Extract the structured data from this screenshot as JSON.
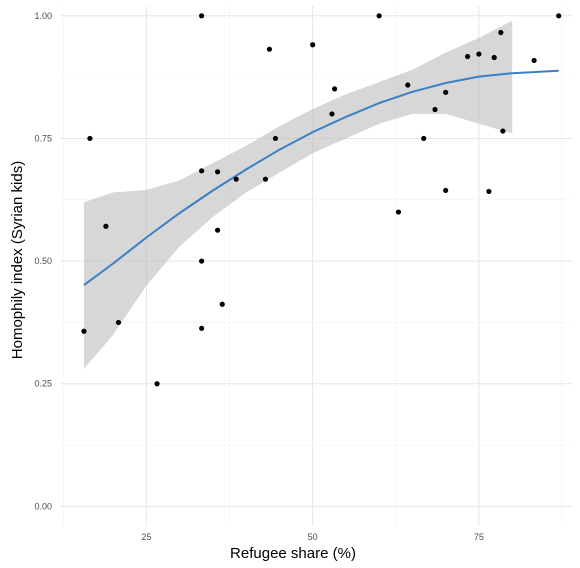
{
  "chart_data": {
    "type": "scatter",
    "title": "",
    "xlabel": "Refugee share (%)",
    "ylabel": "Homophily index (Syrian kids)",
    "xlim": [
      12,
      89
    ],
    "ylim": [
      -0.04,
      1.02
    ],
    "x_ticks": [
      25,
      50,
      75
    ],
    "x_tick_labels": [
      "25",
      "50",
      "75"
    ],
    "y_ticks": [
      0,
      0.25,
      0.5,
      0.75,
      1
    ],
    "y_tick_labels": [
      "0.00",
      "0.25",
      "0.50",
      "0.75",
      "1.00"
    ],
    "grid": true,
    "legend": "none",
    "points": {
      "x": [
        15.6,
        16.5,
        18.9,
        20.8,
        26.6,
        33.3,
        33.3,
        33.3,
        33.3,
        35.7,
        35.7,
        36.4,
        38.5,
        42.9,
        43.5,
        44.4,
        50.0,
        52.9,
        53.3,
        60.0,
        62.9,
        64.3,
        66.7,
        68.4,
        70.0,
        70.0,
        73.3,
        75.0,
        76.5,
        77.3,
        78.3,
        78.6,
        83.3,
        87.0
      ],
      "y": [
        0.357,
        0.75,
        0.571,
        0.375,
        0.25,
        1.0,
        0.684,
        0.5,
        0.363,
        0.682,
        0.563,
        0.412,
        0.667,
        0.667,
        0.932,
        0.75,
        0.941,
        0.8,
        0.851,
        1.0,
        0.6,
        0.859,
        0.75,
        0.809,
        0.844,
        0.644,
        0.917,
        0.922,
        0.642,
        0.915,
        0.966,
        0.765,
        0.909,
        1.0
      ],
      "color": "#000000"
    },
    "smooth": {
      "x": [
        15.6,
        20,
        25,
        30,
        35,
        40,
        45,
        50,
        55,
        60,
        65,
        70,
        75,
        80,
        87
      ],
      "y": [
        0.451,
        0.495,
        0.548,
        0.598,
        0.644,
        0.687,
        0.727,
        0.763,
        0.794,
        0.822,
        0.845,
        0.863,
        0.876,
        0.883,
        0.888
      ],
      "ci_x": [
        15.6,
        20,
        25,
        30,
        35,
        40,
        45,
        50,
        55,
        60,
        65,
        70,
        75,
        80
      ],
      "ci_lower": [
        0.28,
        0.35,
        0.45,
        0.53,
        0.59,
        0.64,
        0.68,
        0.72,
        0.75,
        0.78,
        0.8,
        0.8,
        0.78,
        0.76
      ],
      "ci_upper": [
        0.62,
        0.64,
        0.645,
        0.665,
        0.7,
        0.735,
        0.775,
        0.81,
        0.84,
        0.865,
        0.89,
        0.925,
        0.955,
        0.99
      ],
      "line_color": "#3b7fc4",
      "ribbon_color": "#bdbdbd"
    }
  }
}
